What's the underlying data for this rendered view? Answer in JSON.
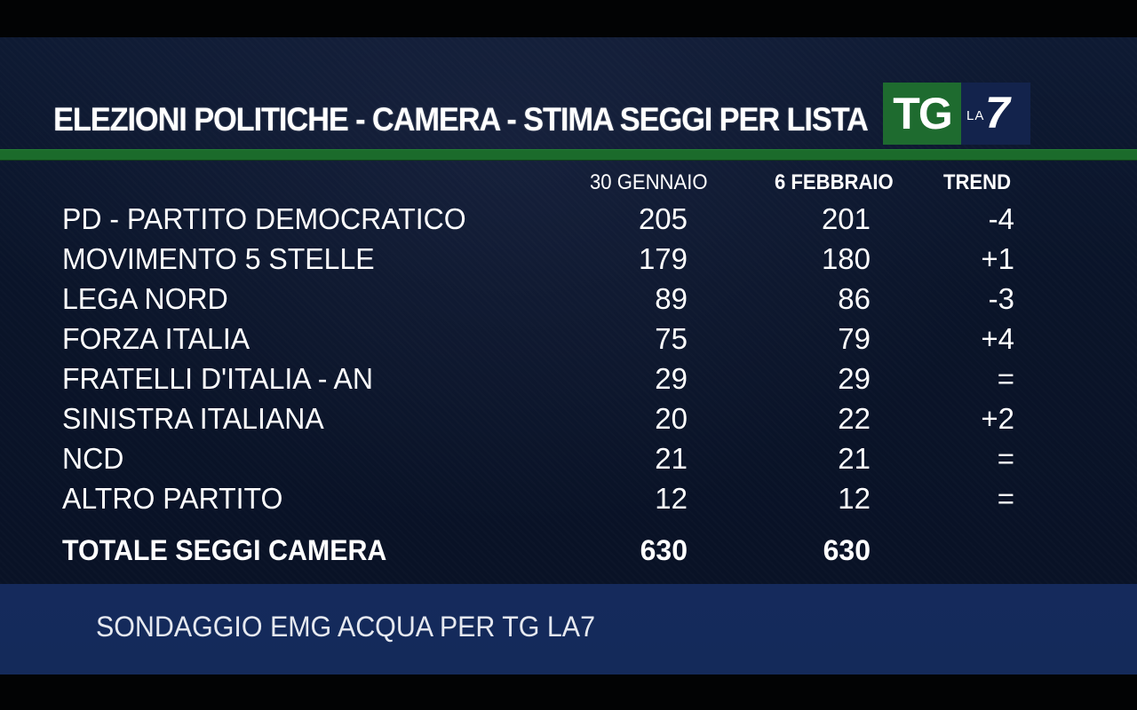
{
  "title": "ELEZIONI POLITICHE - CAMERA - STIMA SEGGI PER LISTA",
  "logo": {
    "tg": "TG",
    "la": "LA",
    "seven": "7"
  },
  "columns": {
    "date1": "30 GENNAIO",
    "date2": "6 FEBBRAIO",
    "trend": "TREND"
  },
  "rows": [
    {
      "party": "PD - PARTITO DEMOCRATICO",
      "jan30": "205",
      "feb6": "201",
      "trend": "-4"
    },
    {
      "party": "MOVIMENTO 5 STELLE",
      "jan30": "179",
      "feb6": "180",
      "trend": "+1"
    },
    {
      "party": "LEGA NORD",
      "jan30": "89",
      "feb6": "86",
      "trend": "-3"
    },
    {
      "party": "FORZA ITALIA",
      "jan30": "75",
      "feb6": "79",
      "trend": "+4"
    },
    {
      "party": "FRATELLI D'ITALIA - AN",
      "jan30": "29",
      "feb6": "29",
      "trend": "="
    },
    {
      "party": "SINISTRA ITALIANA",
      "jan30": "20",
      "feb6": "22",
      "trend": "+2"
    },
    {
      "party": "NCD",
      "jan30": "21",
      "feb6": "21",
      "trend": "="
    },
    {
      "party": "ALTRO PARTITO",
      "jan30": "12",
      "feb6": "12",
      "trend": "="
    }
  ],
  "total": {
    "label": "TOTALE SEGGI CAMERA",
    "jan30": "630",
    "feb6": "630"
  },
  "footer": "SONDAGGIO EMG ACQUA PER TG LA7",
  "colors": {
    "background": "#0a1429",
    "green_band": "#1b6b2b",
    "footer": "#152a5c",
    "logo_tg": "#1e6b2f",
    "logo_la7": "#13234c"
  }
}
